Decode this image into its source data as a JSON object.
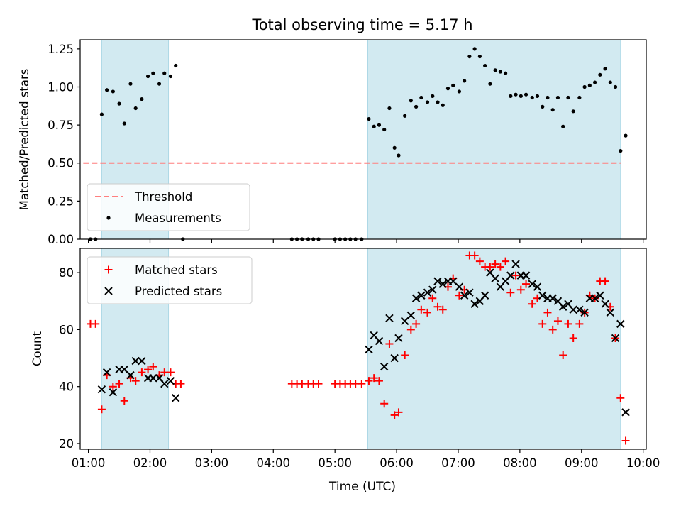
{
  "figure": {
    "title": "Total observing time = 5.17 h",
    "xlabel": "Time (UTC)"
  },
  "colors": {
    "shade": "#add8e6",
    "threshold": "#ff7f7f",
    "measurements": "#000000",
    "matched": "#ff0000",
    "predicted": "#000000"
  },
  "chart_data": [
    {
      "type": "scatter",
      "panel": "top",
      "ylabel": "Matched/Predicted stars",
      "xlim": [
        "00:52",
        "10:03"
      ],
      "ylim": [
        0,
        1.31
      ],
      "yticks": [
        "0.00",
        "0.25",
        "0.50",
        "0.75",
        "1.00",
        "1.25"
      ],
      "shaded_intervals": [
        [
          "01:13",
          "02:18"
        ],
        [
          "05:32",
          "09:38"
        ]
      ],
      "legend": {
        "placement": "lower-left",
        "entries": [
          "Threshold",
          "Measurements"
        ]
      },
      "threshold": {
        "name": "Threshold",
        "y": 0.5,
        "x_range": [
          "00:55",
          "09:38"
        ],
        "style": "dashed"
      },
      "series": [
        {
          "name": "Measurements",
          "marker": "dot",
          "points": [
            [
              "01:02",
              0.0
            ],
            [
              "01:07",
              0.0
            ],
            [
              "01:13",
              0.82
            ],
            [
              "01:18",
              0.98
            ],
            [
              "01:24",
              0.97
            ],
            [
              "01:30",
              0.89
            ],
            [
              "01:35",
              0.76
            ],
            [
              "01:41",
              1.02
            ],
            [
              "01:46",
              0.86
            ],
            [
              "01:52",
              0.92
            ],
            [
              "01:58",
              1.07
            ],
            [
              "02:03",
              1.09
            ],
            [
              "02:09",
              1.02
            ],
            [
              "02:14",
              1.09
            ],
            [
              "02:20",
              1.07
            ],
            [
              "02:25",
              1.14
            ],
            [
              "02:32",
              0.0
            ],
            [
              "04:18",
              0.0
            ],
            [
              "04:23",
              0.0
            ],
            [
              "04:28",
              0.0
            ],
            [
              "04:34",
              0.0
            ],
            [
              "04:39",
              0.0
            ],
            [
              "04:44",
              0.0
            ],
            [
              "05:00",
              0.0
            ],
            [
              "05:05",
              0.0
            ],
            [
              "05:10",
              0.0
            ],
            [
              "05:15",
              0.0
            ],
            [
              "05:20",
              0.0
            ],
            [
              "05:26",
              0.0
            ],
            [
              "05:33",
              0.79
            ],
            [
              "05:38",
              0.74
            ],
            [
              "05:43",
              0.75
            ],
            [
              "05:48",
              0.72
            ],
            [
              "05:53",
              0.86
            ],
            [
              "05:58",
              0.6
            ],
            [
              "06:02",
              0.55
            ],
            [
              "06:08",
              0.81
            ],
            [
              "06:14",
              0.91
            ],
            [
              "06:19",
              0.87
            ],
            [
              "06:24",
              0.93
            ],
            [
              "06:30",
              0.9
            ],
            [
              "06:35",
              0.94
            ],
            [
              "06:40",
              0.9
            ],
            [
              "06:45",
              0.88
            ],
            [
              "06:50",
              0.99
            ],
            [
              "06:55",
              1.01
            ],
            [
              "07:01",
              0.97
            ],
            [
              "07:06",
              1.04
            ],
            [
              "07:11",
              1.2
            ],
            [
              "07:16",
              1.25
            ],
            [
              "07:21",
              1.2
            ],
            [
              "07:26",
              1.14
            ],
            [
              "07:31",
              1.02
            ],
            [
              "07:36",
              1.11
            ],
            [
              "07:41",
              1.1
            ],
            [
              "07:46",
              1.09
            ],
            [
              "07:51",
              0.94
            ],
            [
              "07:56",
              0.95
            ],
            [
              "08:01",
              0.94
            ],
            [
              "08:06",
              0.95
            ],
            [
              "08:12",
              0.93
            ],
            [
              "08:17",
              0.94
            ],
            [
              "08:22",
              0.87
            ],
            [
              "08:27",
              0.93
            ],
            [
              "08:32",
              0.85
            ],
            [
              "08:37",
              0.93
            ],
            [
              "08:42",
              0.74
            ],
            [
              "08:47",
              0.93
            ],
            [
              "08:52",
              0.84
            ],
            [
              "08:58",
              0.93
            ],
            [
              "09:03",
              1.0
            ],
            [
              "09:08",
              1.01
            ],
            [
              "09:13",
              1.03
            ],
            [
              "09:18",
              1.08
            ],
            [
              "09:23",
              1.12
            ],
            [
              "09:28",
              1.03
            ],
            [
              "09:33",
              1.0
            ],
            [
              "09:38",
              0.58
            ],
            [
              "09:43",
              0.68
            ]
          ]
        }
      ]
    },
    {
      "type": "scatter",
      "panel": "bottom",
      "ylabel": "Count",
      "xlim": [
        "00:52",
        "10:03"
      ],
      "ylim": [
        18,
        88.5
      ],
      "yticks": [
        "20",
        "40",
        "60",
        "80"
      ],
      "xticks": [
        "01:00",
        "02:00",
        "03:00",
        "04:00",
        "05:00",
        "06:00",
        "07:00",
        "08:00",
        "09:00",
        "10:00"
      ],
      "shaded_intervals": [
        [
          "01:13",
          "02:18"
        ],
        [
          "05:32",
          "09:38"
        ]
      ],
      "legend": {
        "placement": "upper-left",
        "entries": [
          "Matched stars",
          "Predicted stars"
        ]
      },
      "series": [
        {
          "name": "Matched stars",
          "marker": "plus",
          "points": [
            [
              "01:02",
              62
            ],
            [
              "01:07",
              62
            ],
            [
              "01:13",
              32
            ],
            [
              "01:18",
              44
            ],
            [
              "01:24",
              40
            ],
            [
              "01:30",
              41
            ],
            [
              "01:35",
              35
            ],
            [
              "01:41",
              43
            ],
            [
              "01:46",
              42
            ],
            [
              "01:52",
              45
            ],
            [
              "01:58",
              46
            ],
            [
              "02:03",
              47
            ],
            [
              "02:09",
              44
            ],
            [
              "02:14",
              45
            ],
            [
              "02:20",
              45
            ],
            [
              "02:25",
              41
            ],
            [
              "02:30",
              41
            ],
            [
              "04:18",
              41
            ],
            [
              "04:23",
              41
            ],
            [
              "04:28",
              41
            ],
            [
              "04:34",
              41
            ],
            [
              "04:39",
              41
            ],
            [
              "04:44",
              41
            ],
            [
              "05:00",
              41
            ],
            [
              "05:05",
              41
            ],
            [
              "05:10",
              41
            ],
            [
              "05:15",
              41
            ],
            [
              "05:20",
              41
            ],
            [
              "05:26",
              41
            ],
            [
              "05:33",
              42
            ],
            [
              "05:38",
              43
            ],
            [
              "05:43",
              42
            ],
            [
              "05:48",
              34
            ],
            [
              "05:53",
              55
            ],
            [
              "05:58",
              30
            ],
            [
              "06:02",
              31
            ],
            [
              "06:08",
              51
            ],
            [
              "06:14",
              60
            ],
            [
              "06:19",
              62
            ],
            [
              "06:24",
              67
            ],
            [
              "06:30",
              66
            ],
            [
              "06:35",
              71
            ],
            [
              "06:40",
              68
            ],
            [
              "06:45",
              67
            ],
            [
              "06:50",
              75
            ],
            [
              "06:55",
              78
            ],
            [
              "07:01",
              72
            ],
            [
              "07:06",
              74
            ],
            [
              "07:11",
              86
            ],
            [
              "07:16",
              86
            ],
            [
              "07:21",
              84
            ],
            [
              "07:26",
              82
            ],
            [
              "07:31",
              82
            ],
            [
              "07:36",
              83
            ],
            [
              "07:41",
              82
            ],
            [
              "07:46",
              84
            ],
            [
              "07:51",
              73
            ],
            [
              "07:56",
              79
            ],
            [
              "08:01",
              74
            ],
            [
              "08:06",
              76
            ],
            [
              "08:12",
              69
            ],
            [
              "08:17",
              71
            ],
            [
              "08:22",
              62
            ],
            [
              "08:27",
              66
            ],
            [
              "08:32",
              60
            ],
            [
              "08:37",
              63
            ],
            [
              "08:42",
              51
            ],
            [
              "08:47",
              62
            ],
            [
              "08:52",
              57
            ],
            [
              "08:58",
              62
            ],
            [
              "09:03",
              66
            ],
            [
              "09:08",
              72
            ],
            [
              "09:13",
              71
            ],
            [
              "09:18",
              77
            ],
            [
              "09:23",
              77
            ],
            [
              "09:28",
              68
            ],
            [
              "09:33",
              57
            ],
            [
              "09:38",
              36
            ],
            [
              "09:43",
              21
            ]
          ]
        },
        {
          "name": "Predicted stars",
          "marker": "x",
          "points": [
            [
              "01:13",
              39
            ],
            [
              "01:18",
              45
            ],
            [
              "01:24",
              38
            ],
            [
              "01:30",
              46
            ],
            [
              "01:35",
              46
            ],
            [
              "01:41",
              44
            ],
            [
              "01:46",
              49
            ],
            [
              "01:52",
              49
            ],
            [
              "01:58",
              43
            ],
            [
              "02:03",
              43
            ],
            [
              "02:09",
              43
            ],
            [
              "02:14",
              41
            ],
            [
              "02:20",
              42
            ],
            [
              "02:25",
              36
            ],
            [
              "05:33",
              53
            ],
            [
              "05:38",
              58
            ],
            [
              "05:43",
              56
            ],
            [
              "05:48",
              47
            ],
            [
              "05:53",
              64
            ],
            [
              "05:58",
              50
            ],
            [
              "06:02",
              57
            ],
            [
              "06:08",
              63
            ],
            [
              "06:14",
              65
            ],
            [
              "06:19",
              71
            ],
            [
              "06:24",
              72
            ],
            [
              "06:30",
              73
            ],
            [
              "06:35",
              74
            ],
            [
              "06:40",
              77
            ],
            [
              "06:45",
              76
            ],
            [
              "06:50",
              77
            ],
            [
              "06:55",
              77
            ],
            [
              "07:01",
              75
            ],
            [
              "07:06",
              72
            ],
            [
              "07:11",
              73
            ],
            [
              "07:16",
              69
            ],
            [
              "07:21",
              70
            ],
            [
              "07:26",
              72
            ],
            [
              "07:31",
              80
            ],
            [
              "07:36",
              78
            ],
            [
              "07:41",
              75
            ],
            [
              "07:46",
              77
            ],
            [
              "07:51",
              79
            ],
            [
              "07:56",
              83
            ],
            [
              "08:01",
              79
            ],
            [
              "08:06",
              79
            ],
            [
              "08:12",
              76
            ],
            [
              "08:17",
              75
            ],
            [
              "08:22",
              72
            ],
            [
              "08:27",
              71
            ],
            [
              "08:32",
              71
            ],
            [
              "08:37",
              70
            ],
            [
              "08:42",
              68
            ],
            [
              "08:47",
              69
            ],
            [
              "08:52",
              67
            ],
            [
              "08:58",
              67
            ],
            [
              "09:03",
              66
            ],
            [
              "09:08",
              71
            ],
            [
              "09:13",
              71
            ],
            [
              "09:18",
              72
            ],
            [
              "09:23",
              69
            ],
            [
              "09:28",
              66
            ],
            [
              "09:33",
              57
            ],
            [
              "09:38",
              62
            ],
            [
              "09:43",
              31
            ]
          ]
        }
      ]
    }
  ]
}
